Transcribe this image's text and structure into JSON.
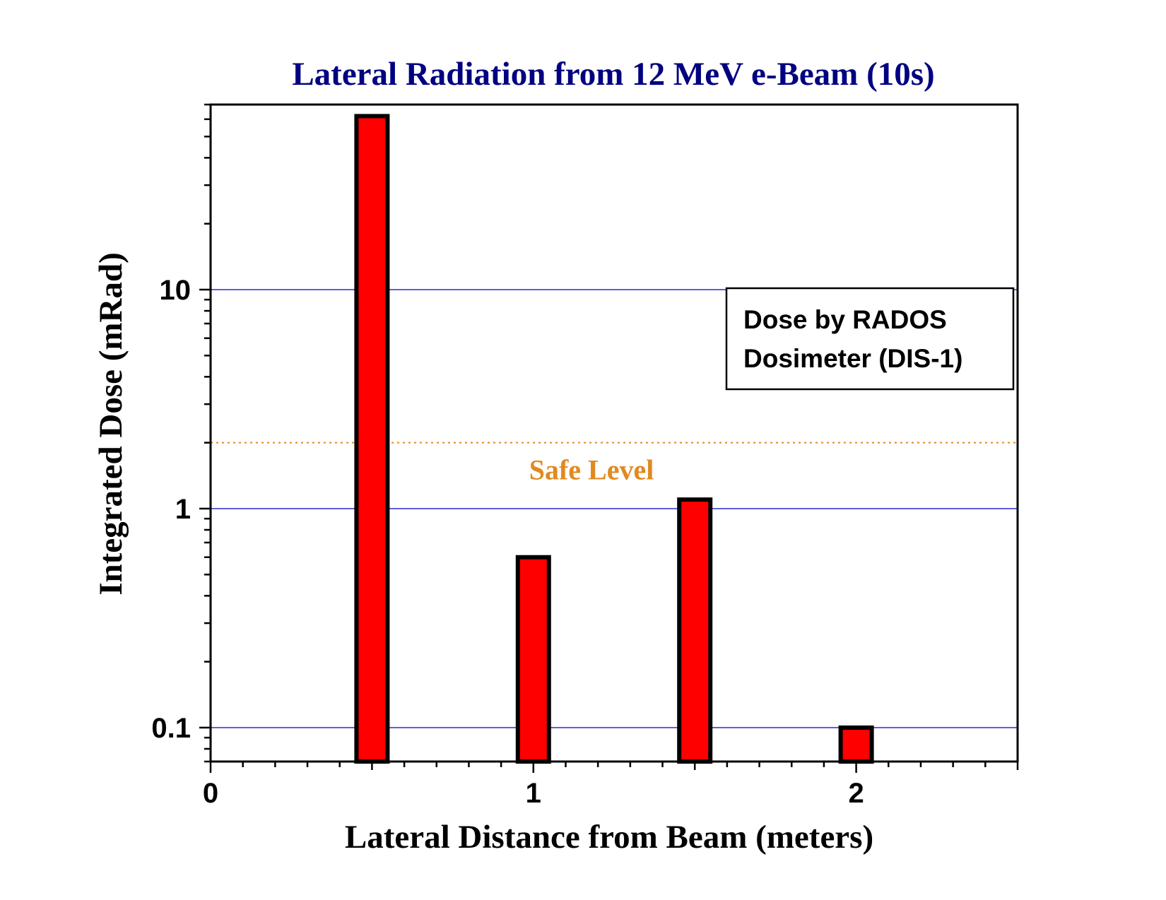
{
  "chart_data": {
    "type": "bar",
    "title": "Lateral Radiation from 12 MeV e-Beam (10s)",
    "xlabel": "Lateral Distance from Beam (meters)",
    "ylabel": "Integrated Dose (mRad)",
    "x": [
      0.5,
      1.0,
      1.5,
      2.0
    ],
    "values": [
      62,
      0.6,
      1.1,
      0.1
    ],
    "xlim": [
      0,
      2.5
    ],
    "ylim": [
      0.07,
      70
    ],
    "yscale": "log",
    "xticks": [
      "0",
      "1",
      "2"
    ],
    "yticks": [
      "0.1",
      "1",
      "10"
    ],
    "grid": "horizontal at decades",
    "reference_line": {
      "label": "Safe Level",
      "value": 2
    },
    "legend": {
      "text": [
        "Dose by RADOS",
        "Dosimeter (DIS-1)"
      ],
      "placement": "top-right"
    },
    "colors": {
      "bar_fill": "#ff0000",
      "bar_stroke": "#000000",
      "title": "#000080",
      "grid": "#0000c0",
      "reference": "#e08a1e"
    }
  }
}
